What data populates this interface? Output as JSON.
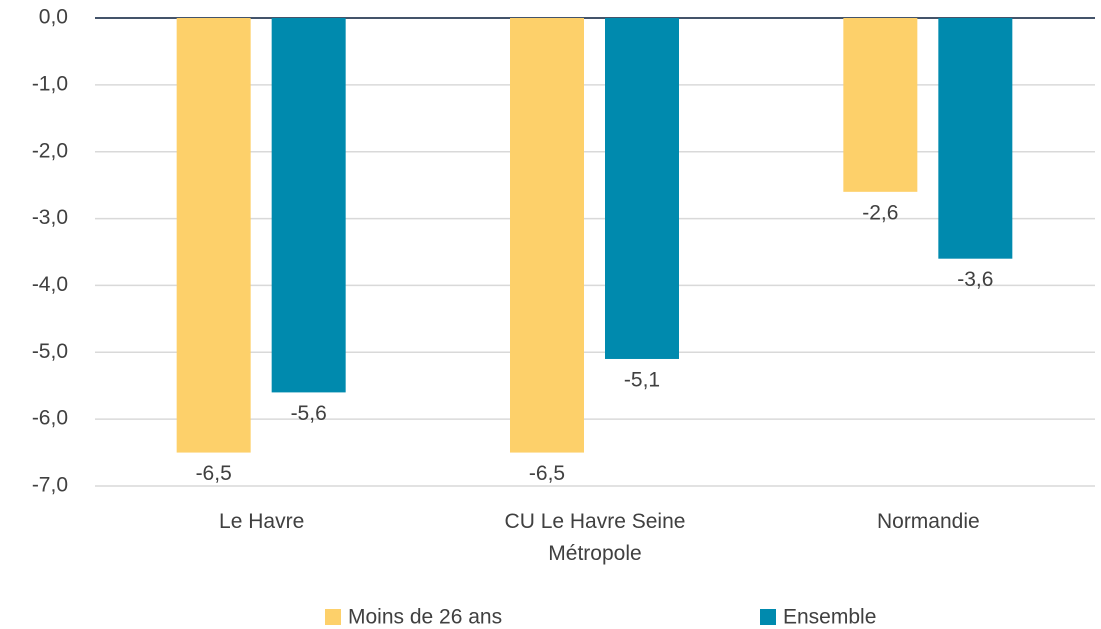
{
  "chart_data": {
    "type": "bar",
    "categories": [
      "Le Havre",
      "CU Le Havre Seine Métropole",
      "Normandie"
    ],
    "series": [
      {
        "name": "Moins de 26 ans",
        "color": "#fdd06a",
        "values": [
          -6.5,
          -6.5,
          -2.6
        ],
        "value_labels": [
          "-6,5",
          "-6,5",
          "-2,6"
        ]
      },
      {
        "name": "Ensemble",
        "color": "#008aae",
        "values": [
          -5.6,
          -5.1,
          -3.6
        ],
        "value_labels": [
          "-5,6",
          "-5,1",
          "-3,6"
        ]
      }
    ],
    "ylim": [
      -7,
      0
    ],
    "yticks": [
      {
        "value": 0,
        "label": "0,0"
      },
      {
        "value": -1,
        "label": "-1,0"
      },
      {
        "value": -2,
        "label": "-2,0"
      },
      {
        "value": -3,
        "label": "-3,0"
      },
      {
        "value": -4,
        "label": "-4,0"
      },
      {
        "value": -5,
        "label": "-5,0"
      },
      {
        "value": -6,
        "label": "-6,0"
      },
      {
        "value": -7,
        "label": "-7,0"
      }
    ],
    "grid": true,
    "legend": "bottom"
  }
}
